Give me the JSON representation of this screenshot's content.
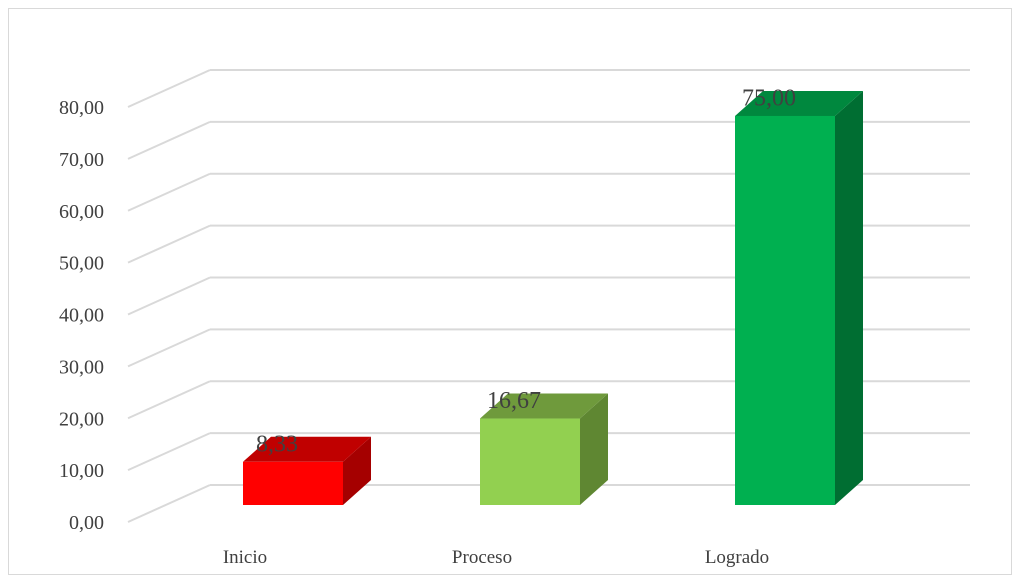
{
  "chart_data": {
    "type": "bar",
    "style": "3d-column",
    "categories": [
      "Inicio",
      "Proceso",
      "Logrado"
    ],
    "values": [
      8.33,
      16.67,
      75.0
    ],
    "data_labels": [
      "8,33",
      "16,67",
      "75,00"
    ],
    "colors": [
      "#ff0000",
      "#92d050",
      "#00b050"
    ],
    "side_colors": [
      "#a50000",
      "#5f8732",
      "#006e32"
    ],
    "top_colors": [
      "#c00000",
      "#6f9a3c",
      "#00883e"
    ],
    "yticks": [
      "0,00",
      "10,00",
      "20,00",
      "30,00",
      "40,00",
      "50,00",
      "60,00",
      "70,00",
      "80,00"
    ],
    "ylim": [
      0,
      80
    ],
    "grid": true,
    "title": "",
    "xlabel": "",
    "ylabel": "",
    "legend": "none"
  }
}
